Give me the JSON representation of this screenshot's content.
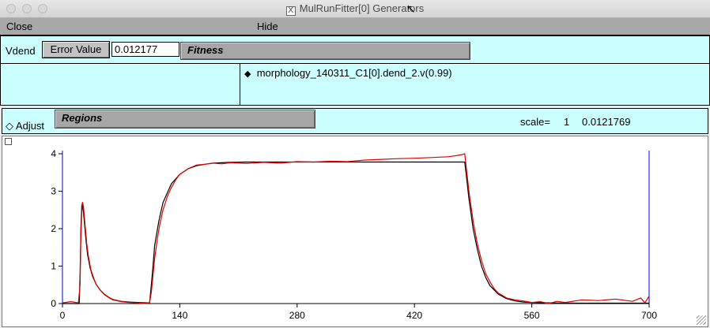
{
  "window": {
    "title": "MulRunFitter[0] Generators"
  },
  "menu": {
    "close": "Close",
    "hide": "Hide"
  },
  "fitness_row": {
    "variable": "Vdend",
    "error_button": "Error Value",
    "error_value": "0.012177",
    "fitness_label": "Fitness"
  },
  "list": {
    "items": [
      {
        "label": "morphology_140311_C1[0].dend_2.v(0.99)"
      }
    ]
  },
  "regions_row": {
    "adjust": "Adjust",
    "regions_label": "Regions",
    "scale_label": "scale=",
    "scale_value": "1",
    "scale_error": "0.0121769"
  },
  "colors": {
    "panel": "#ccffff",
    "model_trace": "#000000",
    "data_trace": "#e00000",
    "region_marker": "#0000cc"
  },
  "chart_data": {
    "type": "line",
    "xlabel": "",
    "ylabel": "",
    "xlim": [
      0,
      700
    ],
    "ylim": [
      0,
      4
    ],
    "x_ticks": [
      "0",
      "140",
      "280",
      "420",
      "560",
      "700"
    ],
    "y_ticks": [
      "0",
      "1",
      "2",
      "3",
      "4"
    ],
    "region_markers_x": [
      0,
      700
    ],
    "series": [
      {
        "color": "#000000",
        "x": [
          0,
          20,
          21,
          22,
          23,
          24,
          26,
          28,
          30,
          33,
          36,
          40,
          45,
          50,
          55,
          60,
          70,
          80,
          90,
          100,
          104,
          106,
          108,
          110,
          115,
          120,
          130,
          140,
          150,
          160,
          170,
          180,
          190,
          200,
          220,
          240,
          260,
          300,
          400,
          475,
          480,
          482,
          485,
          490,
          495,
          500,
          505,
          510,
          520,
          530,
          540,
          550,
          560,
          580,
          600,
          640,
          700
        ],
        "y": [
          0,
          0,
          0.8,
          2.0,
          2.6,
          2.7,
          2.2,
          1.7,
          1.3,
          0.95,
          0.72,
          0.52,
          0.36,
          0.25,
          0.17,
          0.11,
          0.06,
          0.04,
          0.03,
          0.02,
          0.02,
          0.5,
          1.0,
          1.55,
          2.2,
          2.7,
          3.2,
          3.45,
          3.6,
          3.68,
          3.72,
          3.75,
          3.76,
          3.77,
          3.78,
          3.78,
          3.78,
          3.78,
          3.78,
          3.78,
          3.78,
          3.4,
          2.8,
          2.0,
          1.45,
          1.0,
          0.7,
          0.48,
          0.25,
          0.13,
          0.07,
          0.04,
          0.03,
          0.02,
          0.01,
          0.01,
          0.01
        ]
      },
      {
        "color": "#e00000",
        "x": [
          0,
          10,
          19,
          21,
          22,
          23,
          24,
          25,
          27,
          29,
          31,
          34,
          37,
          40,
          45,
          50,
          55,
          60,
          70,
          80,
          90,
          100,
          104,
          106,
          108,
          110,
          113,
          116,
          120,
          125,
          130,
          135,
          140,
          150,
          160,
          170,
          180,
          190,
          200,
          220,
          240,
          260,
          280,
          300,
          320,
          340,
          360,
          380,
          400,
          420,
          440,
          460,
          470,
          475,
          480,
          482,
          485,
          490,
          495,
          500,
          505,
          510,
          515,
          520,
          530,
          540,
          550,
          560,
          570,
          580,
          590,
          600,
          620,
          640,
          660,
          680,
          690,
          695,
          700
        ],
        "y": [
          0.02,
          0.05,
          0.02,
          0.5,
          1.8,
          2.4,
          2.7,
          2.6,
          2.1,
          1.6,
          1.25,
          0.9,
          0.7,
          0.52,
          0.36,
          0.24,
          0.16,
          0.1,
          0.05,
          0.03,
          0.02,
          0.0,
          0.02,
          0.3,
          0.75,
          1.2,
          1.7,
          2.1,
          2.5,
          2.85,
          3.1,
          3.3,
          3.45,
          3.6,
          3.7,
          3.72,
          3.75,
          3.73,
          3.76,
          3.74,
          3.77,
          3.75,
          3.79,
          3.78,
          3.8,
          3.79,
          3.83,
          3.85,
          3.87,
          3.88,
          3.9,
          3.92,
          3.95,
          3.97,
          4.0,
          3.6,
          3.0,
          2.2,
          1.6,
          1.15,
          0.8,
          0.58,
          0.4,
          0.28,
          0.15,
          0.1,
          0.07,
          0.03,
          0.05,
          0.0,
          0.06,
          0.03,
          0.1,
          0.08,
          0.12,
          0.06,
          0.15,
          0.02,
          0.2
        ]
      }
    ]
  }
}
